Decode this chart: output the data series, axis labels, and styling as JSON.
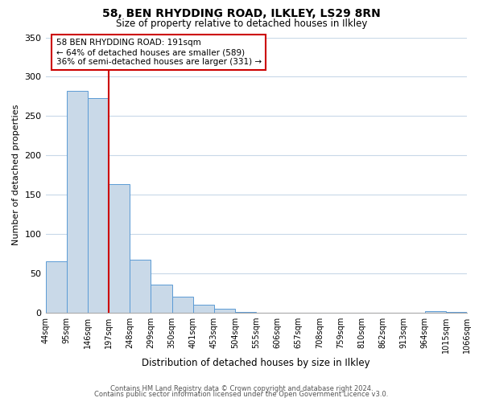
{
  "title": "58, BEN RHYDDING ROAD, ILKLEY, LS29 8RN",
  "subtitle": "Size of property relative to detached houses in Ilkley",
  "xlabel": "Distribution of detached houses by size in Ilkley",
  "ylabel": "Number of detached properties",
  "bin_labels": [
    "44sqm",
    "95sqm",
    "146sqm",
    "197sqm",
    "248sqm",
    "299sqm",
    "350sqm",
    "401sqm",
    "453sqm",
    "504sqm",
    "555sqm",
    "606sqm",
    "657sqm",
    "708sqm",
    "759sqm",
    "810sqm",
    "862sqm",
    "913sqm",
    "964sqm",
    "1015sqm",
    "1066sqm"
  ],
  "bar_heights": [
    65,
    282,
    273,
    163,
    67,
    35,
    20,
    10,
    5,
    1,
    0,
    0,
    0,
    0,
    0,
    0,
    0,
    0,
    2,
    1
  ],
  "bar_color": "#c9d9e8",
  "bar_edge_color": "#5b9bd5",
  "property_line_x": 3.0,
  "property_line_color": "#cc0000",
  "annotation_text": "58 BEN RHYDDING ROAD: 191sqm\n← 64% of detached houses are smaller (589)\n36% of semi-detached houses are larger (331) →",
  "annotation_box_color": "#ffffff",
  "annotation_box_edge": "#cc0000",
  "ylim": [
    0,
    350
  ],
  "yticks": [
    0,
    50,
    100,
    150,
    200,
    250,
    300,
    350
  ],
  "footer_line1": "Contains HM Land Registry data © Crown copyright and database right 2024.",
  "footer_line2": "Contains public sector information licensed under the Open Government Licence v3.0.",
  "background_color": "#ffffff",
  "grid_color": "#c8d8e8"
}
